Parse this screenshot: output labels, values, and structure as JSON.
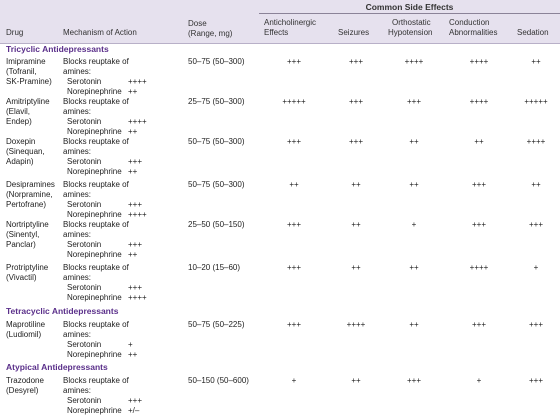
{
  "headers": {
    "group": "Common Side Effects",
    "drug": "Drug",
    "mechanism": "Mechanism of Action",
    "dose_l1": "Dose",
    "dose_l2": "(Range, mg)",
    "anticholinergic_l1": "Anticholinergic",
    "anticholinergic_l2": "Effects",
    "seizures": "Seizures",
    "orthostatic_l1": "Orthostatic",
    "orthostatic_l2": "Hypotension",
    "conduction_l1": "Conduction",
    "conduction_l2": "Abnormalities",
    "sedation": "Sedation"
  },
  "common": {
    "blocks_l1": "Blocks reuptake of",
    "blocks_l2": "amines:",
    "serotonin": "Serotonin",
    "norepinephrine": "Norepinephrine"
  },
  "sections": [
    {
      "title": "Tricyclic Antidepressants",
      "rows": [
        {
          "name_lines": [
            "Imipramine",
            "(Tofranil,",
            "SK-Pramine)"
          ],
          "serotonin": "++++",
          "norepinephrine": "++",
          "dose": "50–75 (50–300)",
          "anticholinergic": "+++",
          "seizures": "+++",
          "orthostatic": "++++",
          "conduction": "++++",
          "sedation": "++"
        },
        {
          "name_lines": [
            "Amitriptyline",
            "(Elavil,",
            "Endep)"
          ],
          "serotonin": "++++",
          "norepinephrine": "++",
          "dose": "25–75 (50–300)",
          "anticholinergic": "+++++",
          "seizures": "+++",
          "orthostatic": "+++",
          "conduction": "++++",
          "sedation": "+++++"
        },
        {
          "name_lines": [
            "Doxepin",
            "(Sinequan,",
            "Adapin)"
          ],
          "serotonin": "+++",
          "norepinephrine": "++",
          "dose": "50–75 (50–300)",
          "anticholinergic": "+++",
          "seizures": "+++",
          "orthostatic": "++",
          "conduction": "++",
          "sedation": "++++"
        },
        {
          "name_lines": [
            "Desipramines",
            "(Norpramine,",
            "Pertofrane)"
          ],
          "serotonin": "+++",
          "norepinephrine": "++++",
          "dose": "50–75 (50–300)",
          "anticholinergic": "++",
          "seizures": "++",
          "orthostatic": "++",
          "conduction": "+++",
          "sedation": "++"
        },
        {
          "name_lines": [
            "Nortriptyline",
            "(Sinentyl,",
            "Panclar)"
          ],
          "serotonin": "+++",
          "norepinephrine": "++",
          "dose": "25–50 (50–150)",
          "anticholinergic": "+++",
          "seizures": "++",
          "orthostatic": "+",
          "conduction": "+++",
          "sedation": "+++"
        },
        {
          "name_lines": [
            "Protriptyline",
            "(Vivactil)"
          ],
          "serotonin": "+++",
          "norepinephrine": "++++",
          "dose": "10–20 (15–60)",
          "anticholinergic": "+++",
          "seizures": "++",
          "orthostatic": "++",
          "conduction": "++++",
          "sedation": "+"
        }
      ]
    },
    {
      "title": "Tetracyclic Antidepressants",
      "rows": [
        {
          "name_lines": [
            "Maprotiline",
            "(Ludiomil)"
          ],
          "serotonin": "+",
          "norepinephrine": "++",
          "dose": "50–75 (50–225)",
          "anticholinergic": "+++",
          "seizures": "++++",
          "orthostatic": "++",
          "conduction": "+++",
          "sedation": "+++"
        }
      ]
    },
    {
      "title": "Atypical Antidepressants",
      "rows": [
        {
          "name_lines": [
            "Trazodone",
            "(Desyrel)"
          ],
          "serotonin": "+++",
          "norepinephrine": "+/–",
          "dose": "50–150 (50–600)",
          "anticholinergic": "+",
          "seizures": "++",
          "orthostatic": "+++",
          "conduction": "+",
          "sedation": "+++"
        }
      ]
    }
  ]
}
